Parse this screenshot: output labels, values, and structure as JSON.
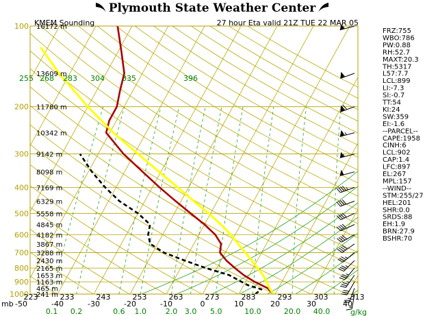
{
  "header": {
    "title": "Plymouth State Weather Center",
    "station": "KMEM Sounding",
    "valid": "27 hour Eta valid 21Z TUE 22 MAR 05"
  },
  "chart_data": {
    "type": "line",
    "subtype": "skew-t log-p sounding",
    "pressure_levels": [
      100,
      200,
      300,
      400,
      500,
      600,
      700,
      800,
      900,
      1000
    ],
    "pressure_unit_label": "mb",
    "bottom_temp_labels": [
      "-50",
      "-40",
      "-30",
      "-20",
      "-10",
      "0",
      "10",
      "20",
      "30",
      "40"
    ],
    "bottom_temp_values": [
      -50,
      -40,
      -30,
      -20,
      -10,
      0,
      10,
      20,
      30,
      40
    ],
    "theta_labels_bottom": [
      "223",
      "233",
      "243",
      "253",
      "263",
      "273",
      "283",
      "293",
      "303",
      "313"
    ],
    "theta_labels_top": [
      "255",
      "268",
      "283",
      "304",
      "335",
      "396"
    ],
    "mixing_ratio_labels": [
      "0.1",
      "0.2",
      "0.6",
      "1.0",
      "2.0",
      "3.0",
      "5.0",
      "10.0",
      "20.0",
      "40.0"
    ],
    "mixing_ratio_values": [
      0.1,
      0.2,
      0.6,
      1.0,
      2.0,
      3.0,
      5.0,
      10.0,
      20.0,
      40.0
    ],
    "mixing_ratio_unit": "g/kg",
    "heights": [
      {
        "p": 100,
        "label": "16172 m"
      },
      {
        "p": 150,
        "label": "13609 m"
      },
      {
        "p": 200,
        "label": "11780 m"
      },
      {
        "p": 250,
        "label": "10342 m"
      },
      {
        "p": 300,
        "label": "9142 m"
      },
      {
        "p": 350,
        "label": "8098 m"
      },
      {
        "p": 400,
        "label": "7169 m"
      },
      {
        "p": 450,
        "label": "6329 m"
      },
      {
        "p": 500,
        "label": "5558 m"
      },
      {
        "p": 550,
        "label": "4845 m"
      },
      {
        "p": 600,
        "label": "4182 m"
      },
      {
        "p": 650,
        "label": "3867 m"
      },
      {
        "p": 700,
        "label": "3288 m"
      },
      {
        "p": 750,
        "label": "2430 m"
      },
      {
        "p": 800,
        "label": "2165 m"
      },
      {
        "p": 850,
        "label": "1653 m"
      },
      {
        "p": 900,
        "label": "1163 m"
      },
      {
        "p": 950,
        "label": "465 m"
      },
      {
        "p": 1000,
        "label": "241 m"
      }
    ],
    "series": [
      {
        "color": "#aa0000",
        "style": "solid",
        "points": [
          {
            "p": 1000,
            "t": 19.5
          },
          {
            "p": 950,
            "t": 17.0
          },
          {
            "p": 900,
            "t": 12.5
          },
          {
            "p": 850,
            "t": 8.5
          },
          {
            "p": 800,
            "t": 5.0
          },
          {
            "p": 750,
            "t": 1.5
          },
          {
            "p": 700,
            "t": -1.5
          },
          {
            "p": 650,
            "t": -2.5
          },
          {
            "p": 600,
            "t": -5.5
          },
          {
            "p": 550,
            "t": -10.0
          },
          {
            "p": 500,
            "t": -15.5
          },
          {
            "p": 450,
            "t": -21.5
          },
          {
            "p": 400,
            "t": -28.0
          },
          {
            "p": 350,
            "t": -35.0
          },
          {
            "p": 300,
            "t": -43.0
          },
          {
            "p": 250,
            "t": -51.0
          },
          {
            "p": 225,
            "t": -52.0
          },
          {
            "p": 200,
            "t": -52.0
          },
          {
            "p": 175,
            "t": -53.5
          },
          {
            "p": 150,
            "t": -55.0
          },
          {
            "p": 125,
            "t": -59.0
          },
          {
            "p": 100,
            "t": -64.0
          }
        ]
      },
      {
        "color": "#000000",
        "style": "dashed",
        "points": [
          {
            "p": 1000,
            "t": 14.5
          },
          {
            "p": 960,
            "t": 15.5
          },
          {
            "p": 925,
            "t": 11.0
          },
          {
            "p": 850,
            "t": 4.5
          },
          {
            "p": 800,
            "t": -3.0
          },
          {
            "p": 750,
            "t": -10.0
          },
          {
            "p": 700,
            "t": -17.0
          },
          {
            "p": 650,
            "t": -22.0
          },
          {
            "p": 600,
            "t": -24.0
          },
          {
            "p": 550,
            "t": -25.0
          },
          {
            "p": 500,
            "t": -30.0
          },
          {
            "p": 450,
            "t": -37.0
          },
          {
            "p": 400,
            "t": -43.0
          },
          {
            "p": 350,
            "t": -49.0
          },
          {
            "p": 300,
            "t": -55.0
          }
        ]
      },
      {
        "color": "#ffff00",
        "style": "solid",
        "points": [
          {
            "p": 1000,
            "t": 19.5
          },
          {
            "p": 950,
            "t": 17.5
          },
          {
            "p": 900,
            "t": 15.8
          },
          {
            "p": 850,
            "t": 13.8
          },
          {
            "p": 800,
            "t": 11.2
          },
          {
            "p": 750,
            "t": 8.5
          },
          {
            "p": 700,
            "t": 5.5
          },
          {
            "p": 650,
            "t": 2.2
          },
          {
            "p": 600,
            "t": -1.2
          },
          {
            "p": 550,
            "t": -5.5
          },
          {
            "p": 500,
            "t": -10.5
          },
          {
            "p": 450,
            "t": -16.5
          },
          {
            "p": 400,
            "t": -23.0
          },
          {
            "p": 350,
            "t": -30.5
          },
          {
            "p": 300,
            "t": -39.0
          },
          {
            "p": 250,
            "t": -49.0
          },
          {
            "p": 200,
            "t": -60.0
          },
          {
            "p": 150,
            "t": -73.0
          },
          {
            "p": 120,
            "t": -82.0
          }
        ]
      }
    ],
    "wind_barbs": [
      {
        "p": 100,
        "dir": 255,
        "spd": 55
      },
      {
        "p": 150,
        "dir": 250,
        "spd": 60
      },
      {
        "p": 200,
        "dir": 250,
        "spd": 70
      },
      {
        "p": 250,
        "dir": 255,
        "spd": 65
      },
      {
        "p": 300,
        "dir": 255,
        "spd": 55
      },
      {
        "p": 350,
        "dir": 255,
        "spd": 50
      },
      {
        "p": 400,
        "dir": 250,
        "spd": 45
      },
      {
        "p": 450,
        "dir": 250,
        "spd": 40
      },
      {
        "p": 500,
        "dir": 245,
        "spd": 40
      },
      {
        "p": 550,
        "dir": 245,
        "spd": 40
      },
      {
        "p": 600,
        "dir": 240,
        "spd": 40
      },
      {
        "p": 650,
        "dir": 235,
        "spd": 40
      },
      {
        "p": 700,
        "dir": 230,
        "spd": 35
      },
      {
        "p": 750,
        "dir": 225,
        "spd": 35
      },
      {
        "p": 800,
        "dir": 220,
        "spd": 35
      },
      {
        "p": 850,
        "dir": 215,
        "spd": 35
      },
      {
        "p": 900,
        "dir": 210,
        "spd": 30
      },
      {
        "p": 950,
        "dir": 200,
        "spd": 25
      },
      {
        "p": 1000,
        "dir": 190,
        "spd": 15
      }
    ],
    "indices": [
      "FRZ:755",
      "WBO:786",
      "PW:0.88",
      "RH:52.7",
      "MAXT:20.3",
      "TH:5317",
      "L57:7.7",
      "LCL:899",
      "LI:-7.3",
      "SI:-0.7",
      "TT:54",
      "KI:24",
      "SW:359",
      "EI:-1.6",
      "--PARCEL--",
      "CAPE:1958",
      "CINH:6",
      "LCL:902",
      "CAP:1.4",
      "LFC:897",
      "EL:267",
      "MPL:157",
      "--WIND--",
      "STM:255/27",
      "HEL:201",
      "SHR:0.0",
      "SRDS:88",
      "EH:1.9",
      "BRN:27.9",
      "BSHR:70"
    ]
  }
}
